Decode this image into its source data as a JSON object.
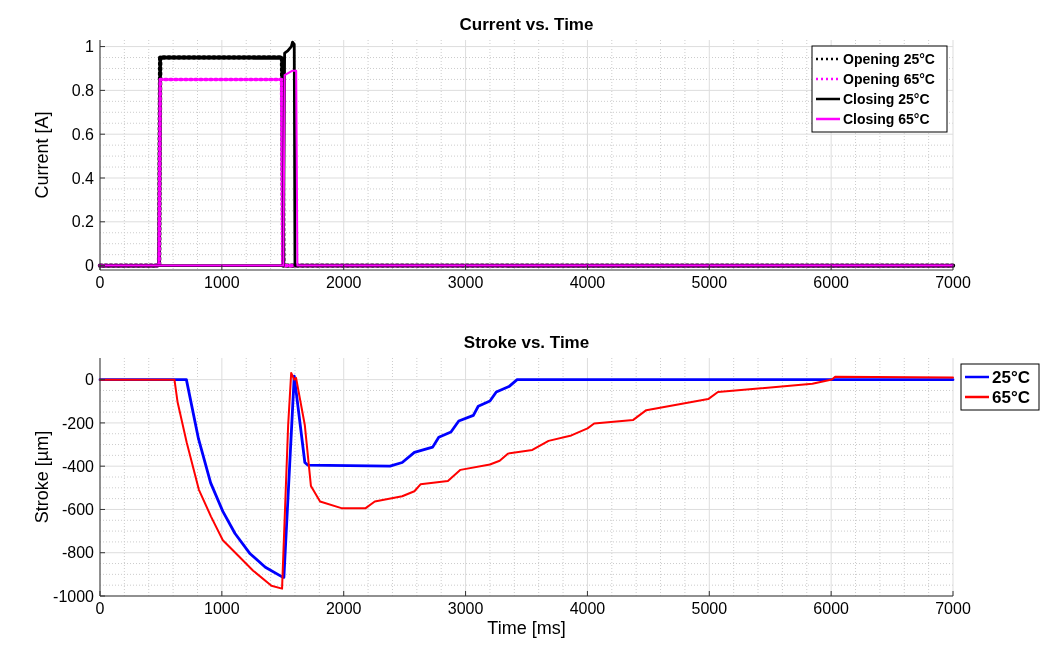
{
  "chart_data": [
    {
      "type": "line",
      "title": "Current vs. Time",
      "ylabel": "Current [A]",
      "xlim": [
        0,
        7000
      ],
      "xticks": [
        0,
        1000,
        2000,
        3000,
        4000,
        5000,
        6000,
        7000
      ],
      "ylim": [
        -0.02,
        1.03
      ],
      "yticks": [
        0,
        0.2,
        0.4,
        0.6,
        0.8,
        1
      ],
      "grid": true,
      "legend": "top right",
      "series": [
        {
          "name": "Opening 25°C",
          "color": "#000000",
          "line_style": "dotted",
          "x": [
            0,
            485,
            494,
            1494,
            1505,
            7000
          ],
          "values": [
            0,
            0,
            0.95,
            0.95,
            0,
            0
          ]
        },
        {
          "name": "Opening 65°C",
          "color": "#ff00ff",
          "line_style": "dotted",
          "x": [
            0,
            485,
            494,
            1490,
            1500,
            7000
          ],
          "values": [
            0,
            0,
            0.85,
            0.85,
            0,
            0
          ]
        },
        {
          "name": "Closing 25°C",
          "color": "#000000",
          "line_style": "solid",
          "x": [
            0,
            1505,
            1515,
            1540,
            1570,
            1580,
            1594,
            1600,
            7000
          ],
          "values": [
            0,
            0,
            0.97,
            0.98,
            1.0,
            1.02,
            1.01,
            0,
            0
          ]
        },
        {
          "name": "Closing 65°C",
          "color": "#ff00ff",
          "line_style": "solid",
          "x": [
            0,
            1505,
            1515,
            1580,
            1610,
            1620,
            7000
          ],
          "values": [
            0,
            0,
            0.87,
            0.89,
            0.89,
            0,
            0
          ]
        }
      ]
    },
    {
      "type": "line",
      "title": "Stroke vs. Time",
      "xlabel": "Time [ms]",
      "ylabel": "Stroke [µm]",
      "xlim": [
        0,
        7000
      ],
      "xticks": [
        0,
        1000,
        2000,
        3000,
        4000,
        5000,
        6000,
        7000
      ],
      "ylim": [
        -1000,
        100
      ],
      "yticks": [
        -1000,
        -800,
        -600,
        -400,
        -200,
        0
      ],
      "grid": true,
      "legend": "right",
      "series": [
        {
          "name": "25°C",
          "color": "#0000ff",
          "line_style": "solid",
          "x": [
            0,
            709,
            808,
            908,
            1008,
            1108,
            1232,
            1357,
            1502,
            1509,
            1594,
            1681,
            1706,
            2380,
            2480,
            2580,
            2730,
            2780,
            2880,
            2944,
            3064,
            3104,
            3200,
            3252,
            3356,
            3423,
            7000
          ],
          "values": [
            0,
            0,
            -273,
            -477,
            -609,
            -711,
            -805,
            -867,
            -914,
            -914,
            16,
            -383,
            -395,
            -400,
            -383,
            -336,
            -312,
            -266,
            -242,
            -191,
            -165,
            -123,
            -99,
            -57,
            -32,
            0,
            0
          ]
        },
        {
          "name": "65°C",
          "color": "#ff0000",
          "line_style": "solid",
          "x": [
            0,
            611,
            636,
            711,
            811,
            911,
            1008,
            1133,
            1257,
            1407,
            1494,
            1544,
            1569,
            1594,
            1609,
            1681,
            1731,
            1806,
            1981,
            2180,
            2255,
            2480,
            2580,
            2630,
            2855,
            2958,
            3200,
            3280,
            3347,
            3548,
            3681,
            3868,
            4001,
            4055,
            4376,
            4483,
            4991,
            5071,
            5846,
            6006,
            6033,
            7000
          ],
          "values": [
            0,
            0,
            -102,
            -289,
            -508,
            -633,
            -742,
            -813,
            -883,
            -953,
            -966,
            -211,
            31,
            0,
            8,
            -211,
            -492,
            -563,
            -594,
            -594,
            -563,
            -539,
            -516,
            -484,
            -469,
            -417,
            -392,
            -375,
            -342,
            -325,
            -283,
            -258,
            -225,
            -203,
            -186,
            -141,
            -90,
            -57,
            -19,
            1,
            13,
            10
          ]
        }
      ]
    }
  ]
}
